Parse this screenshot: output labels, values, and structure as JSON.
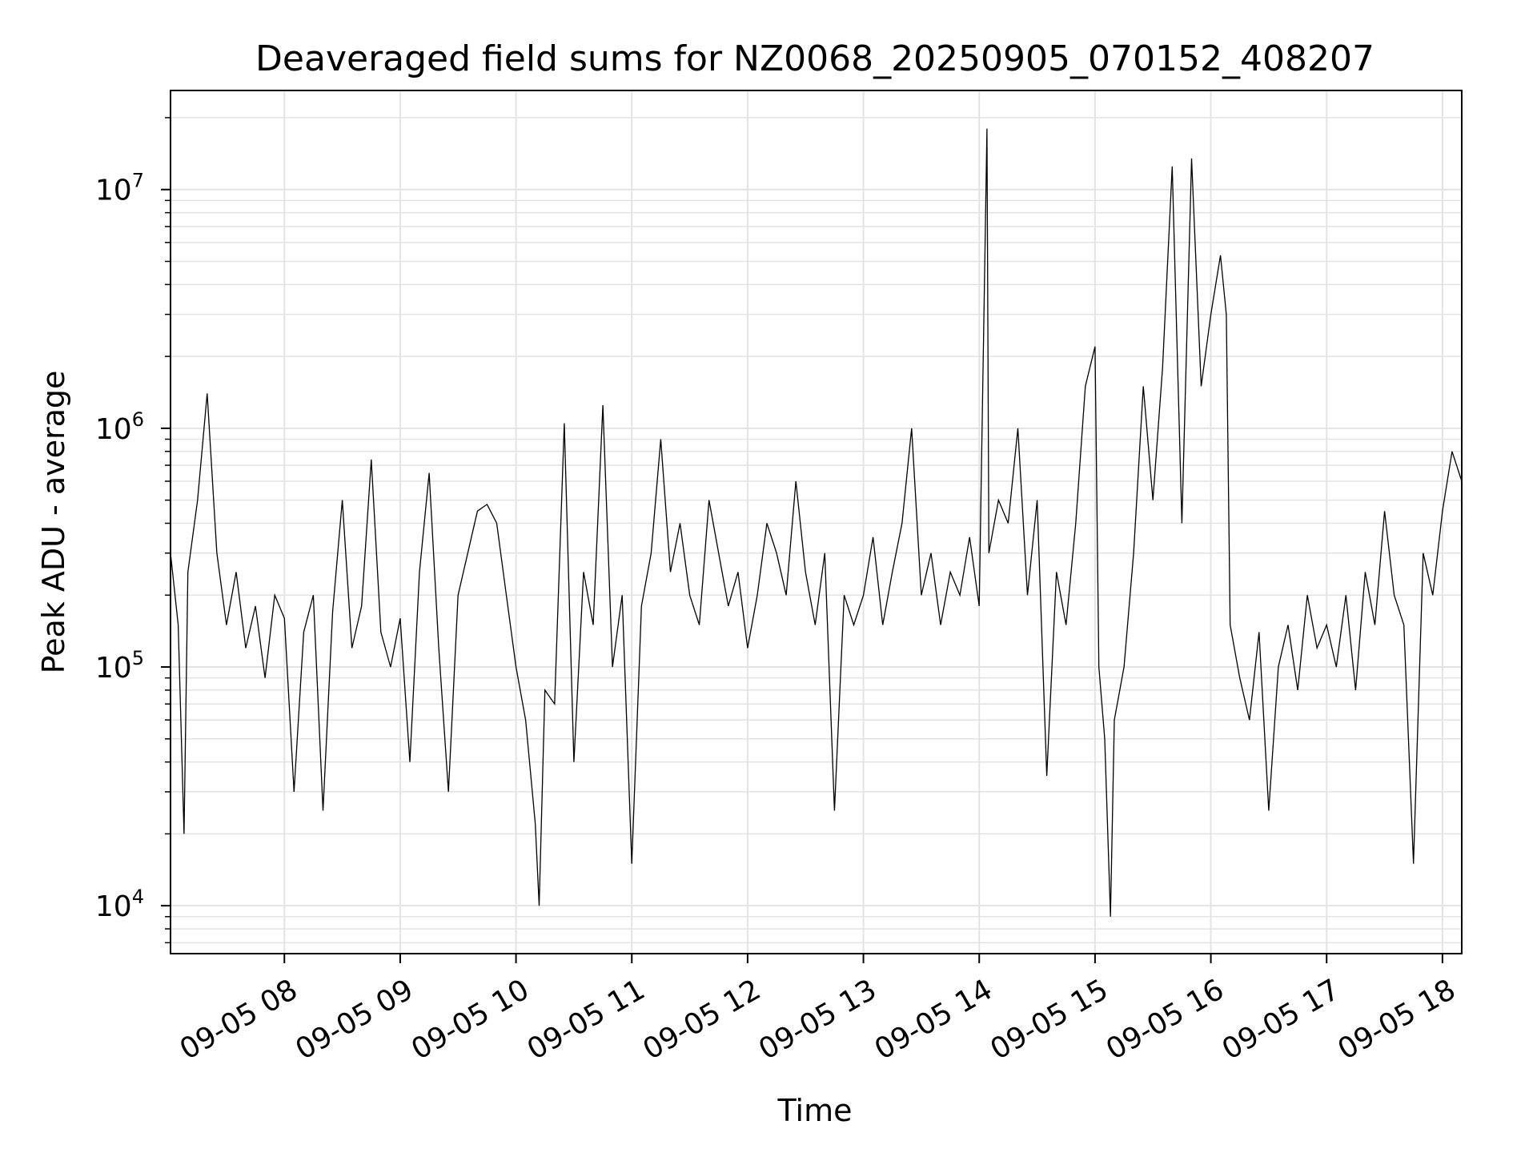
{
  "chart_data": {
    "type": "line",
    "title": "Deaveraged field sums for NZ0068_20250905_070152_408207",
    "xlabel": "Time",
    "ylabel": "Peak ADU - average",
    "y_scale": "log",
    "ylim": [
      6300,
      26000000
    ],
    "xlim": [
      "09-05 07:01",
      "09-05 18:10"
    ],
    "grid": true,
    "legend": "none",
    "line_color": "#000000",
    "x_ticks": [
      {
        "t": "09-05 08:00",
        "label": "09-05 08"
      },
      {
        "t": "09-05 09:00",
        "label": "09-05 09"
      },
      {
        "t": "09-05 10:00",
        "label": "09-05 10"
      },
      {
        "t": "09-05 11:00",
        "label": "09-05 11"
      },
      {
        "t": "09-05 12:00",
        "label": "09-05 12"
      },
      {
        "t": "09-05 13:00",
        "label": "09-05 13"
      },
      {
        "t": "09-05 14:00",
        "label": "09-05 14"
      },
      {
        "t": "09-05 15:00",
        "label": "09-05 15"
      },
      {
        "t": "09-05 16:00",
        "label": "09-05 16"
      },
      {
        "t": "09-05 17:00",
        "label": "09-05 17"
      },
      {
        "t": "09-05 18:00",
        "label": "09-05 18"
      }
    ],
    "y_ticks": [
      {
        "value": 10000,
        "base": "10",
        "exp": "4"
      },
      {
        "value": 100000,
        "base": "10",
        "exp": "5"
      },
      {
        "value": 1000000,
        "base": "10",
        "exp": "6"
      },
      {
        "value": 10000000,
        "base": "10",
        "exp": "7"
      }
    ],
    "series": [
      {
        "points": [
          [
            "09-05 07:01",
            300000
          ],
          [
            "09-05 07:05",
            150000
          ],
          [
            "09-05 07:08",
            20000
          ],
          [
            "09-05 07:10",
            250000
          ],
          [
            "09-05 07:15",
            500000
          ],
          [
            "09-05 07:20",
            1400000
          ],
          [
            "09-05 07:25",
            300000
          ],
          [
            "09-05 07:30",
            150000
          ],
          [
            "09-05 07:35",
            250000
          ],
          [
            "09-05 07:40",
            120000
          ],
          [
            "09-05 07:45",
            180000
          ],
          [
            "09-05 07:50",
            90000
          ],
          [
            "09-05 07:55",
            200000
          ],
          [
            "09-05 08:00",
            160000
          ],
          [
            "09-05 08:05",
            30000
          ],
          [
            "09-05 08:10",
            140000
          ],
          [
            "09-05 08:15",
            200000
          ],
          [
            "09-05 08:20",
            25000
          ],
          [
            "09-05 08:25",
            170000
          ],
          [
            "09-05 08:30",
            500000
          ],
          [
            "09-05 08:35",
            120000
          ],
          [
            "09-05 08:40",
            180000
          ],
          [
            "09-05 08:45",
            740000
          ],
          [
            "09-05 08:50",
            140000
          ],
          [
            "09-05 08:55",
            100000
          ],
          [
            "09-05 09:00",
            160000
          ],
          [
            "09-05 09:05",
            40000
          ],
          [
            "09-05 09:10",
            250000
          ],
          [
            "09-05 09:15",
            650000
          ],
          [
            "09-05 09:20",
            120000
          ],
          [
            "09-05 09:25",
            30000
          ],
          [
            "09-05 09:30",
            200000
          ],
          [
            "09-05 09:35",
            300000
          ],
          [
            "09-05 09:40",
            450000
          ],
          [
            "09-05 09:45",
            480000
          ],
          [
            "09-05 09:50",
            400000
          ],
          [
            "09-05 09:55",
            200000
          ],
          [
            "09-05 10:00",
            100000
          ],
          [
            "09-05 10:05",
            60000
          ],
          [
            "09-05 10:10",
            22000
          ],
          [
            "09-05 10:12",
            10000
          ],
          [
            "09-05 10:15",
            80000
          ],
          [
            "09-05 10:20",
            70000
          ],
          [
            "09-05 10:25",
            1050000
          ],
          [
            "09-05 10:30",
            40000
          ],
          [
            "09-05 10:35",
            250000
          ],
          [
            "09-05 10:40",
            150000
          ],
          [
            "09-05 10:45",
            1250000
          ],
          [
            "09-05 10:50",
            100000
          ],
          [
            "09-05 10:55",
            200000
          ],
          [
            "09-05 11:00",
            15000
          ],
          [
            "09-05 11:05",
            180000
          ],
          [
            "09-05 11:10",
            300000
          ],
          [
            "09-05 11:15",
            900000
          ],
          [
            "09-05 11:20",
            250000
          ],
          [
            "09-05 11:25",
            400000
          ],
          [
            "09-05 11:30",
            200000
          ],
          [
            "09-05 11:35",
            150000
          ],
          [
            "09-05 11:40",
            500000
          ],
          [
            "09-05 11:45",
            300000
          ],
          [
            "09-05 11:50",
            180000
          ],
          [
            "09-05 11:55",
            250000
          ],
          [
            "09-05 12:00",
            120000
          ],
          [
            "09-05 12:05",
            200000
          ],
          [
            "09-05 12:10",
            400000
          ],
          [
            "09-05 12:15",
            300000
          ],
          [
            "09-05 12:20",
            200000
          ],
          [
            "09-05 12:25",
            600000
          ],
          [
            "09-05 12:30",
            250000
          ],
          [
            "09-05 12:35",
            150000
          ],
          [
            "09-05 12:40",
            300000
          ],
          [
            "09-05 12:45",
            25000
          ],
          [
            "09-05 12:50",
            200000
          ],
          [
            "09-05 12:55",
            150000
          ],
          [
            "09-05 13:00",
            200000
          ],
          [
            "09-05 13:05",
            350000
          ],
          [
            "09-05 13:10",
            150000
          ],
          [
            "09-05 13:15",
            250000
          ],
          [
            "09-05 13:20",
            400000
          ],
          [
            "09-05 13:25",
            1000000
          ],
          [
            "09-05 13:30",
            200000
          ],
          [
            "09-05 13:35",
            300000
          ],
          [
            "09-05 13:40",
            150000
          ],
          [
            "09-05 13:45",
            250000
          ],
          [
            "09-05 13:50",
            200000
          ],
          [
            "09-05 13:55",
            350000
          ],
          [
            "09-05 14:00",
            180000
          ],
          [
            "09-05 14:04",
            18000000
          ],
          [
            "09-05 14:05",
            300000
          ],
          [
            "09-05 14:10",
            500000
          ],
          [
            "09-05 14:15",
            400000
          ],
          [
            "09-05 14:20",
            1000000
          ],
          [
            "09-05 14:25",
            200000
          ],
          [
            "09-05 14:30",
            500000
          ],
          [
            "09-05 14:35",
            35000
          ],
          [
            "09-05 14:40",
            250000
          ],
          [
            "09-05 14:45",
            150000
          ],
          [
            "09-05 14:50",
            400000
          ],
          [
            "09-05 14:55",
            1500000
          ],
          [
            "09-05 15:00",
            2200000
          ],
          [
            "09-05 15:02",
            100000
          ],
          [
            "09-05 15:05",
            50000
          ],
          [
            "09-05 15:08",
            9000
          ],
          [
            "09-05 15:10",
            60000
          ],
          [
            "09-05 15:15",
            100000
          ],
          [
            "09-05 15:20",
            300000
          ],
          [
            "09-05 15:25",
            1500000
          ],
          [
            "09-05 15:30",
            500000
          ],
          [
            "09-05 15:35",
            1800000
          ],
          [
            "09-05 15:40",
            12500000
          ],
          [
            "09-05 15:45",
            400000
          ],
          [
            "09-05 15:50",
            13500000
          ],
          [
            "09-05 15:55",
            1500000
          ],
          [
            "09-05 16:00",
            3000000
          ],
          [
            "09-05 16:05",
            5300000
          ],
          [
            "09-05 16:08",
            3000000
          ],
          [
            "09-05 16:10",
            150000
          ],
          [
            "09-05 16:15",
            90000
          ],
          [
            "09-05 16:20",
            60000
          ],
          [
            "09-05 16:25",
            140000
          ],
          [
            "09-05 16:30",
            25000
          ],
          [
            "09-05 16:35",
            100000
          ],
          [
            "09-05 16:40",
            150000
          ],
          [
            "09-05 16:45",
            80000
          ],
          [
            "09-05 16:50",
            200000
          ],
          [
            "09-05 16:55",
            120000
          ],
          [
            "09-05 17:00",
            150000
          ],
          [
            "09-05 17:05",
            100000
          ],
          [
            "09-05 17:10",
            200000
          ],
          [
            "09-05 17:15",
            80000
          ],
          [
            "09-05 17:20",
            250000
          ],
          [
            "09-05 17:25",
            150000
          ],
          [
            "09-05 17:30",
            450000
          ],
          [
            "09-05 17:35",
            200000
          ],
          [
            "09-05 17:40",
            150000
          ],
          [
            "09-05 17:45",
            15000
          ],
          [
            "09-05 17:50",
            300000
          ],
          [
            "09-05 17:55",
            200000
          ],
          [
            "09-05 18:00",
            450000
          ],
          [
            "09-05 18:05",
            800000
          ],
          [
            "09-05 18:10",
            600000
          ]
        ]
      }
    ]
  }
}
